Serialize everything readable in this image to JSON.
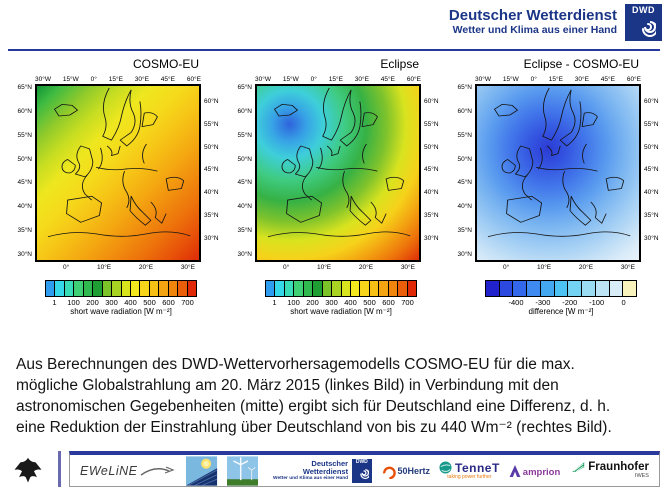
{
  "header": {
    "org": "Deutscher Wetterdienst",
    "tagline": "Wetter und Klima aus einer Hand",
    "logo_text": "DWD",
    "brand_color": "#1c3687"
  },
  "maps": [
    {
      "title": "COSMO-EU",
      "top_axis": [
        "30°W",
        "15°W",
        "0°",
        "15°E",
        "30°E",
        "45°E",
        "60°E"
      ],
      "bottom_axis": [
        "0°",
        "10°E",
        "20°E",
        "30°E"
      ],
      "left_axis": [
        "65°N",
        "60°N",
        "55°N",
        "50°N",
        "45°N",
        "40°N",
        "35°N",
        "30°N"
      ],
      "right_axis": [
        "60°N",
        "55°N",
        "50°N",
        "45°N",
        "40°N",
        "35°N",
        "30°N"
      ],
      "fill_style": "background:linear-gradient(135deg,#109433 0%,#3fbb42 7%,#8cc92b 16%,#c6dd22 25%,#eee71e 34%,#f5da1b 44%,#f6c316 54%,#f4a811 64%,#f18d0e 73%,#ed720b 82%,#e75109 91%,#de2b07 100%)",
      "colorbar": {
        "colors": [
          "#2e9df0",
          "#35d8e8",
          "#38ddb7",
          "#3fd076",
          "#2fb94e",
          "#1f9e33",
          "#7cc229",
          "#a8d322",
          "#d8e41e",
          "#f4e81e",
          "#f6d51a",
          "#f7c015",
          "#f4a411",
          "#f0850e",
          "#ea5e0a",
          "#e02807"
        ],
        "labels": [
          "1",
          "100",
          "200",
          "300",
          "400",
          "500",
          "600",
          "700"
        ],
        "caption": "short wave radiation [W m⁻²]"
      }
    },
    {
      "title": "Eclipse",
      "top_axis": [
        "30°W",
        "15°W",
        "0°",
        "15°E",
        "30°E",
        "45°E",
        "60°E"
      ],
      "bottom_axis": [
        "0°",
        "10°E",
        "20°E",
        "30°E"
      ],
      "left_axis": [
        "65°N",
        "60°N",
        "55°N",
        "50°N",
        "45°N",
        "40°N",
        "35°N",
        "30°N"
      ],
      "right_axis": [
        "60°N",
        "55°N",
        "50°N",
        "45°N",
        "40°N",
        "35°N",
        "30°N"
      ],
      "fill_style": "background:radial-gradient(circle at 20% 22%,#2f63dc 0%,#37a2e6 9%,#3ecfda 18%,#3fcb80 30%,#36b145 41%,#7fc32c 52%,#d9e31f 62%,#f6d21a 72%,#f3a311 81%,#ed720b 90%,#de2e07 100%)",
      "colorbar": {
        "colors": [
          "#2e9df0",
          "#35d8e8",
          "#38ddb7",
          "#3fd076",
          "#2fb94e",
          "#1f9e33",
          "#7cc229",
          "#a8d322",
          "#d8e41e",
          "#f4e81e",
          "#f6d51a",
          "#f7c015",
          "#f4a411",
          "#f0850e",
          "#ea5e0a",
          "#e02807"
        ],
        "labels": [
          "1",
          "100",
          "200",
          "300",
          "400",
          "500",
          "600",
          "700"
        ],
        "caption": "short wave radiation [W m⁻²]"
      }
    },
    {
      "title": "Eclipse - COSMO-EU",
      "top_axis": [
        "30°W",
        "15°W",
        "0°",
        "15°E",
        "30°E",
        "45°E",
        "60°E"
      ],
      "bottom_axis": [
        "0°",
        "10°E",
        "20°E",
        "30°E"
      ],
      "left_axis": [
        "65°N",
        "60°N",
        "55°N",
        "50°N",
        "45°N",
        "40°N",
        "35°N",
        "30°N"
      ],
      "right_axis": [
        "60°N",
        "55°N",
        "50°N",
        "45°N",
        "40°N",
        "35°N",
        "30°N"
      ],
      "fill_style": "background:radial-gradient(circle at 44% 36%,#2c3bd4 0%,#3455e1 13%,#4277ea 27%,#599aef 41%,#7db7f1 55%,#a2cef4 69%,#c2dff6 81%,#dbecf9 91%,#e8f2fb 100%)",
      "colorbar": {
        "colors": [
          "#2222cd",
          "#2b49df",
          "#3468ea",
          "#3f8af0",
          "#44a8f0",
          "#4cc3f2",
          "#74d2f2",
          "#9bdcf3",
          "#bde4f4",
          "#d9edf8",
          "#f8f3bd"
        ],
        "labels": [
          "-400",
          "-300",
          "-200",
          "-100",
          "0"
        ],
        "caption": "difference [W m⁻²]"
      }
    }
  ],
  "body_lines": [
    "Aus Berechnungen des DWD-Wettervorhersagemodells COSMO-EU für die max.",
    "mögliche Globalstrahlung am 20. März 2015 (linkes Bild) in Verbindung mit den",
    "astronomischen Gegebenheiten (mitte) ergibt sich für Deutschland eine Differenz, d. h.",
    "eine Reduktion der Einstrahlung über Deutschland von bis zu 440 Wm⁻² (rechtes Bild)."
  ],
  "footer": {
    "eweline": "EWeLiNE",
    "dwd_org": "Deutscher Wetterdienst",
    "dwd_tagline": "Wetter und Klima aus einer Hand",
    "dwd_logo": "DWD",
    "partner_50hertz": "50Hertz",
    "partner_tennet": "TenneT",
    "tennet_tagline": "taking power further",
    "partner_amprion": "amprion",
    "partner_fraunhofer": "Fraunhofer",
    "fraunhofer_unit": "IWES"
  }
}
